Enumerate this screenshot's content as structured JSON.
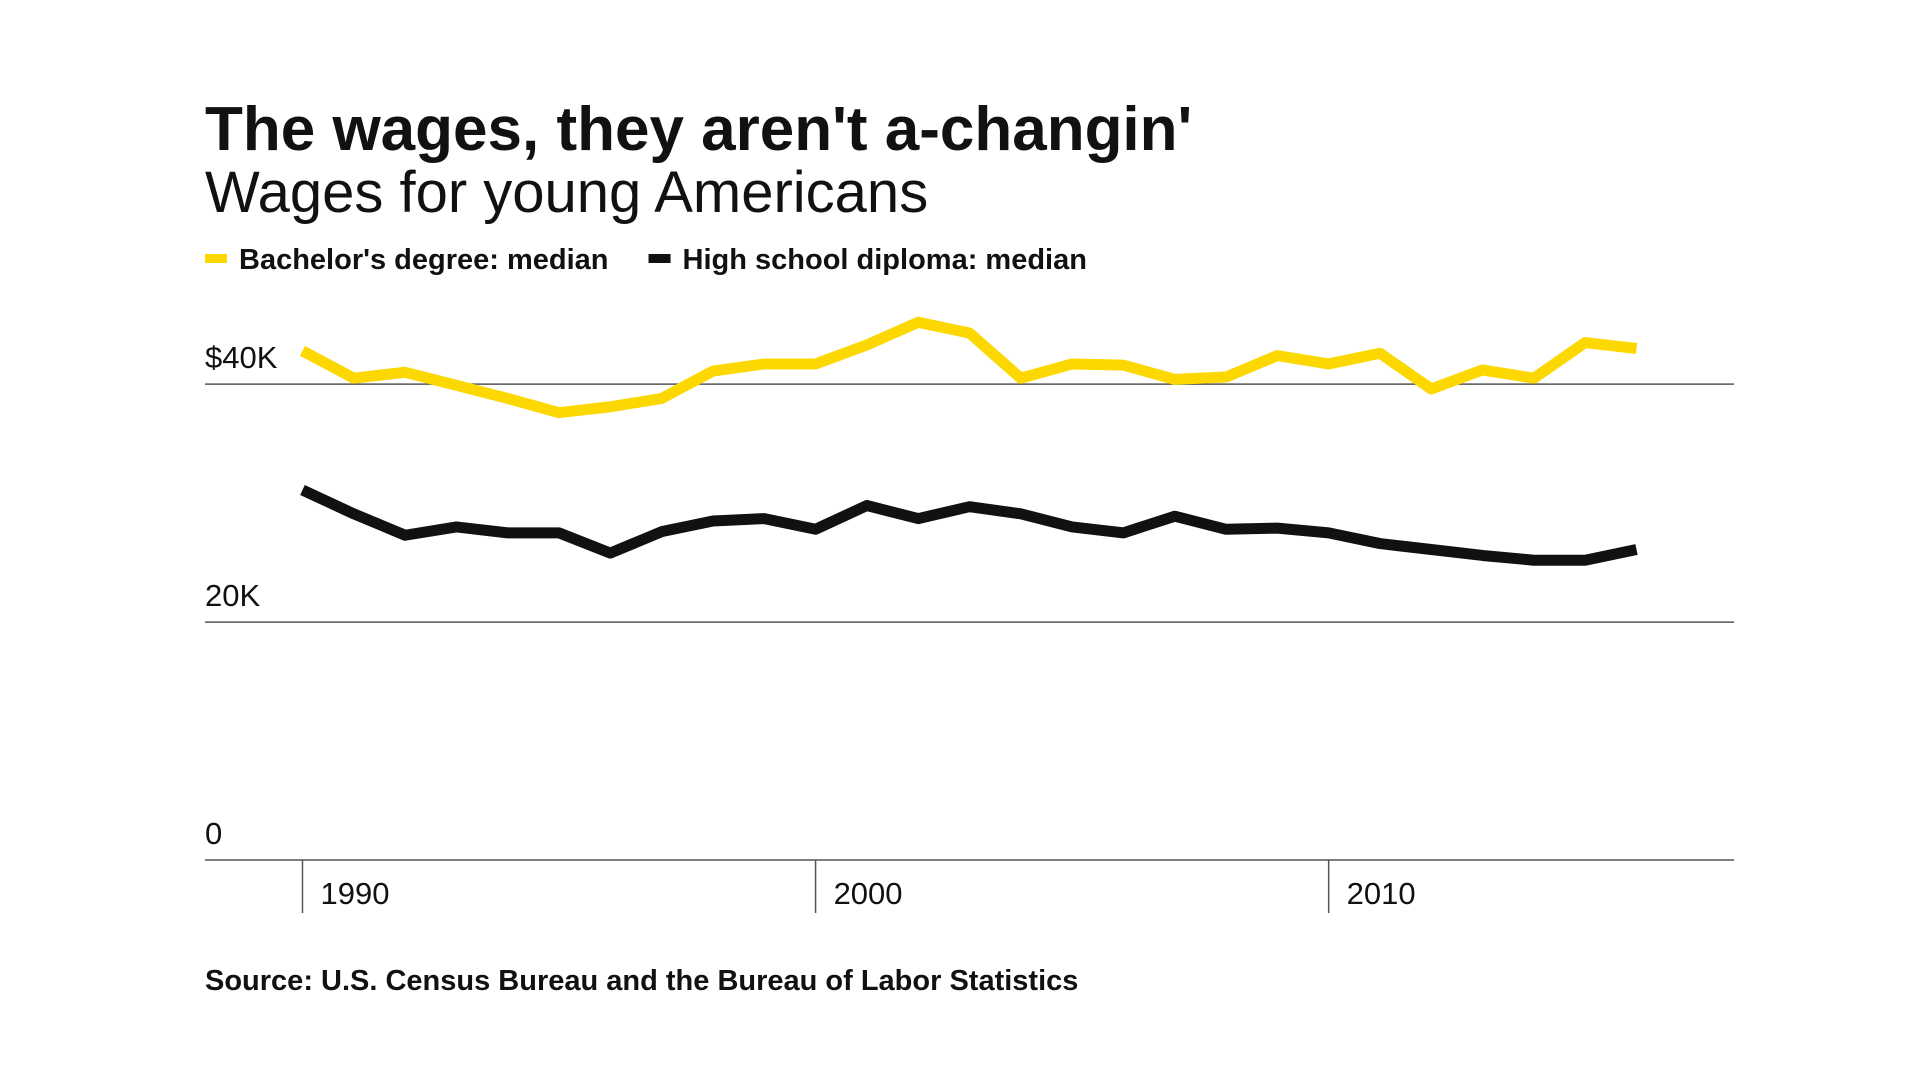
{
  "chart_data": {
    "type": "line",
    "title": "The wages, they aren't a-changin'",
    "subtitle": "Wages for young Americans",
    "source": "Source: U.S. Census Bureau and the Bureau of Labor Statistics",
    "x": [
      1990,
      1991,
      1992,
      1993,
      1994,
      1995,
      1996,
      1997,
      1998,
      1999,
      2000,
      2001,
      2002,
      2003,
      2004,
      2005,
      2006,
      2007,
      2008,
      2009,
      2010,
      2011,
      2012,
      2013,
      2014,
      2015,
      2016
    ],
    "series": [
      {
        "name": "Bachelor's degree: median",
        "color": "#fcd800",
        "values": [
          42.8,
          40.5,
          41.0,
          39.9,
          38.8,
          37.6,
          38.1,
          38.8,
          41.1,
          41.7,
          41.7,
          43.3,
          45.2,
          44.3,
          40.5,
          41.7,
          41.6,
          40.4,
          40.6,
          42.4,
          41.7,
          42.6,
          39.6,
          41.2,
          40.5,
          43.5,
          43.0
        ]
      },
      {
        "name": "High school diploma: median",
        "color": "#111111",
        "values": [
          31.1,
          29.1,
          27.3,
          28.0,
          27.5,
          27.5,
          25.8,
          27.6,
          28.5,
          28.7,
          27.8,
          29.8,
          28.7,
          29.7,
          29.1,
          28.0,
          27.5,
          28.9,
          27.8,
          27.9,
          27.5,
          26.6,
          26.1,
          25.6,
          25.2,
          25.2,
          26.1
        ]
      }
    ],
    "xlim": [
      1988.1,
      2017.9
    ],
    "xticks": [
      1990,
      2000,
      2010
    ],
    "ylim": [
      0,
      48
    ],
    "yticks": [
      0,
      {
        "value": 20,
        "label": "20K"
      },
      {
        "value": 40,
        "label": "$40K"
      }
    ],
    "grid": true
  }
}
